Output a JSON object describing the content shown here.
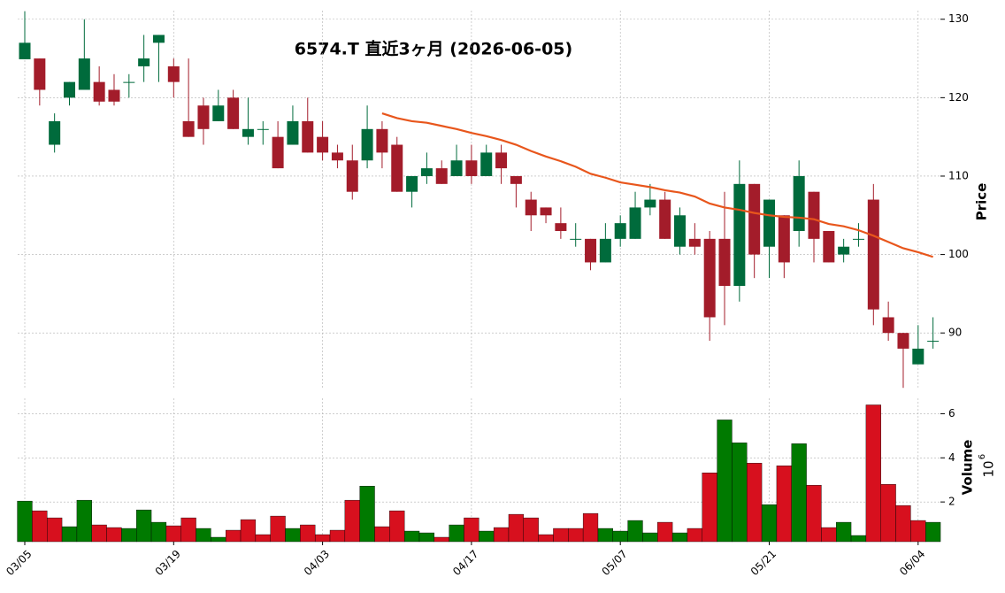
{
  "chart_data": {
    "type": "candlestick",
    "title": "6574.T  直近3ヶ月  (2026-06-05)",
    "ylabel": "Price",
    "volume_label": "Volume",
    "volume_scale_base": "10",
    "volume_scale_exponent": "6",
    "categories": [
      "03/05",
      null,
      null,
      null,
      null,
      null,
      null,
      null,
      null,
      null,
      "03/19",
      null,
      null,
      null,
      null,
      null,
      null,
      null,
      null,
      null,
      "04/03",
      null,
      null,
      null,
      null,
      null,
      null,
      null,
      null,
      null,
      "04/17",
      null,
      null,
      null,
      null,
      null,
      null,
      null,
      null,
      null,
      "05/07",
      null,
      null,
      null,
      null,
      null,
      null,
      null,
      null,
      null,
      "05/21",
      null,
      null,
      null,
      null,
      null,
      null,
      null,
      null,
      null,
      "06/04",
      null
    ],
    "open": [
      124.9,
      125,
      114,
      120,
      121,
      122,
      121,
      122,
      124,
      127,
      124,
      117,
      119,
      117,
      120,
      115,
      116,
      115,
      114,
      117,
      115,
      113,
      112,
      112,
      116,
      114,
      108,
      110,
      111,
      110,
      112,
      110,
      113,
      110,
      107,
      106,
      104,
      102,
      102,
      99,
      102,
      102,
      106,
      107,
      101,
      102,
      102,
      102,
      96,
      109,
      101,
      105,
      103,
      108,
      103,
      100,
      102,
      107,
      92,
      90,
      86,
      89
    ],
    "high": [
      131,
      125,
      118,
      122,
      130,
      124,
      123,
      123,
      128,
      128,
      125,
      125,
      120,
      121,
      121,
      120,
      117,
      117,
      119,
      120,
      117,
      114,
      114,
      119,
      117,
      115,
      110,
      113,
      112,
      114,
      114,
      114,
      114,
      110,
      108,
      106,
      106,
      104,
      102,
      104,
      105,
      108,
      109,
      108,
      106,
      104,
      103,
      108,
      112,
      109,
      107,
      105,
      112,
      108,
      103,
      102,
      104,
      109,
      94,
      90,
      91,
      92
    ],
    "low": [
      124.9,
      119,
      113,
      119,
      121,
      119,
      119,
      120,
      122,
      122,
      120,
      115,
      114,
      117,
      116,
      114,
      114,
      111,
      114,
      113,
      112,
      111,
      107,
      111,
      111,
      108,
      106,
      109,
      109,
      110,
      109,
      110,
      109,
      106,
      103,
      104,
      102,
      101,
      98,
      99,
      101,
      102,
      105,
      102,
      100,
      100,
      89,
      91,
      94,
      97,
      97,
      97,
      101,
      99,
      99,
      99,
      101,
      91,
      89,
      83,
      86,
      88
    ],
    "close": [
      127,
      121,
      117,
      122,
      125,
      119.5,
      119.5,
      122,
      125,
      128,
      122,
      115,
      116,
      119,
      116,
      116,
      116,
      111,
      117,
      113,
      113,
      112,
      108,
      116,
      113,
      108,
      110,
      111,
      109,
      112,
      110,
      113,
      111,
      109,
      105,
      105,
      103,
      102,
      99,
      102,
      104,
      106,
      107,
      102,
      105,
      101,
      92,
      96,
      109,
      100,
      107,
      99,
      110,
      102,
      99,
      101,
      102,
      93,
      90,
      88,
      88,
      89
    ],
    "ma": [
      null,
      null,
      null,
      null,
      null,
      null,
      null,
      null,
      null,
      null,
      null,
      null,
      null,
      null,
      null,
      null,
      null,
      null,
      null,
      null,
      null,
      null,
      null,
      null,
      118.0,
      117.4,
      117.0,
      116.8,
      116.4,
      116.0,
      115.5,
      115.1,
      114.6,
      114.0,
      113.2,
      112.5,
      111.9,
      111.2,
      110.3,
      109.8,
      109.2,
      108.9,
      108.6,
      108.2,
      107.9,
      107.4,
      106.5,
      106.0,
      105.7,
      105.3,
      105.0,
      104.8,
      104.7,
      104.5,
      103.9,
      103.6,
      103.1,
      102.4,
      101.6,
      100.8,
      100.3,
      99.7
    ],
    "volume": [
      2.04,
      1.6,
      1.28,
      0.88,
      2.08,
      0.96,
      0.84,
      0.8,
      1.64,
      1.08,
      0.92,
      1.28,
      0.8,
      0.4,
      0.72,
      1.2,
      0.52,
      1.36,
      0.8,
      0.96,
      0.52,
      0.72,
      2.08,
      2.72,
      0.88,
      1.6,
      0.68,
      0.6,
      0.4,
      0.96,
      1.28,
      0.68,
      0.84,
      1.44,
      1.28,
      0.52,
      0.8,
      0.8,
      1.48,
      0.8,
      0.68,
      1.16,
      0.6,
      1.08,
      0.6,
      0.8,
      3.32,
      5.72,
      4.68,
      3.76,
      1.88,
      3.64,
      4.64,
      2.76,
      0.84,
      1.08,
      0.48,
      6.4,
      2.8,
      1.84,
      1.16,
      1.08
    ],
    "ylim": [
      82.8,
      131.1
    ],
    "yticks": [
      90,
      100,
      110,
      120,
      130
    ],
    "volume_ylim": [
      0.2,
      6.7
    ],
    "volume_yticks": [
      2,
      4,
      6
    ],
    "up_color": "#006b3c",
    "down_color": "#a31c2a",
    "volume_up_color": "#007a00",
    "volume_down_color": "#d7101e",
    "ma_color": "#e8561c",
    "grid": true
  }
}
